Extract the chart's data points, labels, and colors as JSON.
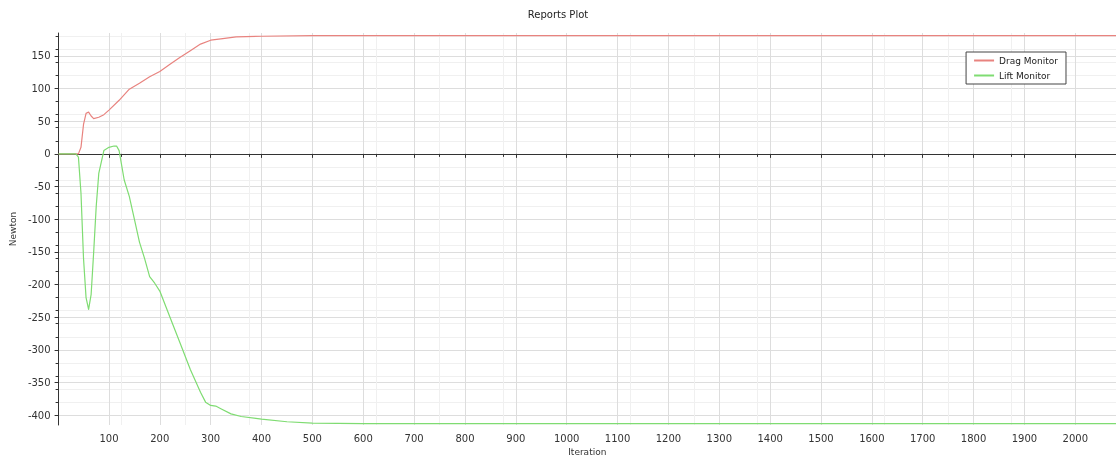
{
  "chart_data": {
    "type": "line",
    "title": "Reports Plot",
    "xlabel": "Iteration",
    "ylabel": "Newton",
    "xlim": [
      1,
      2080
    ],
    "ylim": [
      -415,
      185
    ],
    "xticks": [
      100,
      200,
      300,
      400,
      500,
      600,
      700,
      800,
      900,
      1000,
      1100,
      1200,
      1300,
      1400,
      1500,
      1600,
      1700,
      1800,
      1900,
      2000
    ],
    "yticks": [
      -400,
      -350,
      -300,
      -250,
      -200,
      -150,
      -100,
      -50,
      0,
      50,
      100,
      150
    ],
    "grid": true,
    "legend": "top right",
    "marker": "none",
    "line_style": "solid",
    "series": [
      {
        "name": "Drag Monitor",
        "color": "#e8837f",
        "x": [
          1,
          20,
          40,
          45,
          50,
          55,
          60,
          65,
          70,
          80,
          90,
          100,
          120,
          140,
          160,
          180,
          200,
          220,
          240,
          260,
          280,
          300,
          320,
          350,
          400,
          500,
          1000,
          2080
        ],
        "values": [
          0,
          0,
          0,
          10,
          45,
          62,
          64,
          58,
          54,
          56,
          60,
          67,
          82,
          99,
          108,
          118,
          126,
          137,
          148,
          158,
          168,
          174,
          176,
          179,
          180,
          181,
          181,
          181
        ]
      },
      {
        "name": "Lift Monitor",
        "color": "#7fdc72",
        "x": [
          1,
          20,
          35,
          40,
          45,
          50,
          55,
          60,
          65,
          70,
          75,
          80,
          90,
          100,
          110,
          115,
          120,
          130,
          140,
          150,
          160,
          170,
          180,
          190,
          200,
          220,
          240,
          260,
          280,
          290,
          300,
          310,
          320,
          340,
          360,
          400,
          450,
          500,
          600,
          2080
        ],
        "values": [
          0,
          0,
          0,
          -5,
          -60,
          -160,
          -220,
          -238,
          -215,
          -150,
          -80,
          -30,
          5,
          10,
          12,
          12,
          5,
          -40,
          -65,
          -100,
          -135,
          -160,
          -188,
          -198,
          -210,
          -250,
          -290,
          -330,
          -365,
          -380,
          -385,
          -386,
          -390,
          -398,
          -402,
          -406,
          -410,
          -412,
          -413,
          -413
        ]
      }
    ]
  }
}
